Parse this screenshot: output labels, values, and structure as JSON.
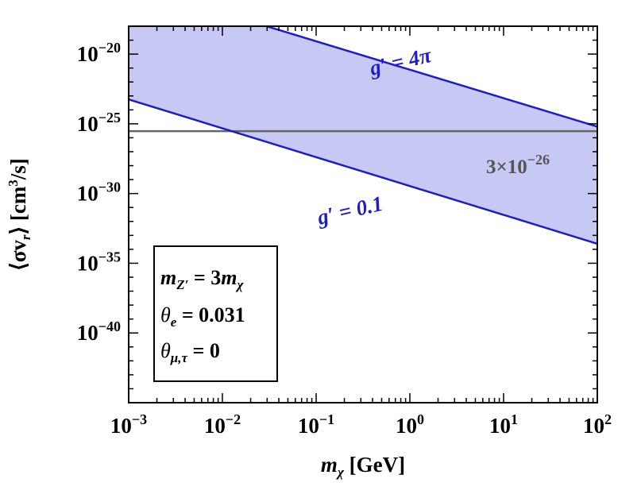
{
  "chart_data": {
    "type": "area",
    "x_scale": "log",
    "y_scale": "log",
    "xlim": [
      0.001,
      100
    ],
    "ylim": [
      1e-45,
      1e-18
    ],
    "x_ticks": [
      {
        "value": 0.001,
        "base": "10",
        "exp": "−3"
      },
      {
        "value": 0.01,
        "base": "10",
        "exp": "−2"
      },
      {
        "value": 0.1,
        "base": "10",
        "exp": "−1"
      },
      {
        "value": 1,
        "base": "10",
        "exp": "0"
      },
      {
        "value": 10,
        "base": "10",
        "exp": "1"
      },
      {
        "value": 100,
        "base": "10",
        "exp": "2"
      }
    ],
    "y_ticks": [
      {
        "value": 1e-20,
        "base": "10",
        "exp": "−20"
      },
      {
        "value": 1e-25,
        "base": "10",
        "exp": "−25"
      },
      {
        "value": 1e-30,
        "base": "10",
        "exp": "−30"
      },
      {
        "value": 1e-35,
        "base": "10",
        "exp": "−35"
      },
      {
        "value": 1e-40,
        "base": "10",
        "exp": "−40"
      }
    ],
    "xlabel": {
      "main": "m",
      "sub": "χ",
      "unit": " [GeV]"
    },
    "ylabel": {
      "open": "⟨σv",
      "sub": "r",
      "close": "⟩ [cm",
      "sup": "3",
      "tail": "/s]"
    },
    "series": [
      {
        "name": "g′ = 4π",
        "x": [
          0.001,
          100
        ],
        "y": [
          1e-15,
          6.3e-26
        ],
        "color": "#1f1fbf"
      },
      {
        "name": "g′ = 0.1",
        "x": [
          0.001,
          100
        ],
        "y": [
          5.6e-24,
          2.5e-34
        ],
        "color": "#1f1fbf"
      }
    ],
    "band_fill": "#c8c8f4",
    "reference_line": {
      "y": 3e-26,
      "label_base": "3×10",
      "label_exp": "−26",
      "color": "#666666"
    },
    "legend": {
      "placement": "bottom-left",
      "lines": [
        {
          "main": "m",
          "sub": "Z′",
          "rest": " = 3",
          "main2": "m",
          "sub2": "χ"
        },
        {
          "sym": "θ",
          "sub": "e",
          "rest": " = 0.031"
        },
        {
          "sym": "θ",
          "sub": "μ,τ",
          "rest": " = 0"
        }
      ]
    }
  }
}
